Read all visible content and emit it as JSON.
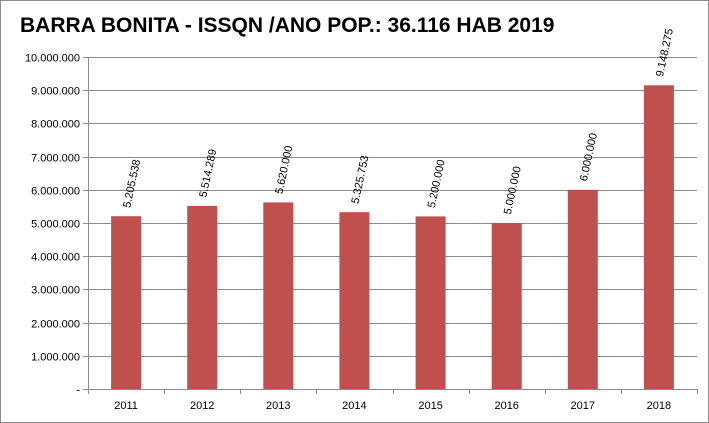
{
  "chart_data": {
    "type": "bar",
    "title": "BARRA BONITA - ISSQN /ANO POP.: 36.116 HAB 2019",
    "categories": [
      "2011",
      "2012",
      "2013",
      "2014",
      "2015",
      "2016",
      "2017",
      "2018"
    ],
    "values": [
      5205538,
      5514289,
      5620000,
      5325753,
      5200000,
      5000000,
      6000000,
      9148275
    ],
    "data_labels": [
      "5.205.538",
      "5.514.289",
      "5.620.000",
      "5.325.753",
      "5.200.000",
      "5.000.000",
      "6.000.000",
      "9.148.275"
    ],
    "ylim": [
      0,
      10000000
    ],
    "y_ticks": [
      0,
      1000000,
      2000000,
      3000000,
      4000000,
      5000000,
      6000000,
      7000000,
      8000000,
      9000000,
      10000000
    ],
    "y_tick_labels": [
      "-",
      "1.000.000",
      "2.000.000",
      "3.000.000",
      "4.000.000",
      "5.000.000",
      "6.000.000",
      "7.000.000",
      "8.000.000",
      "9.000.000",
      "10.000.000"
    ],
    "grid": true,
    "legend": "none",
    "bar_color": "#c0504d",
    "grid_color": "#8c8c8c"
  }
}
